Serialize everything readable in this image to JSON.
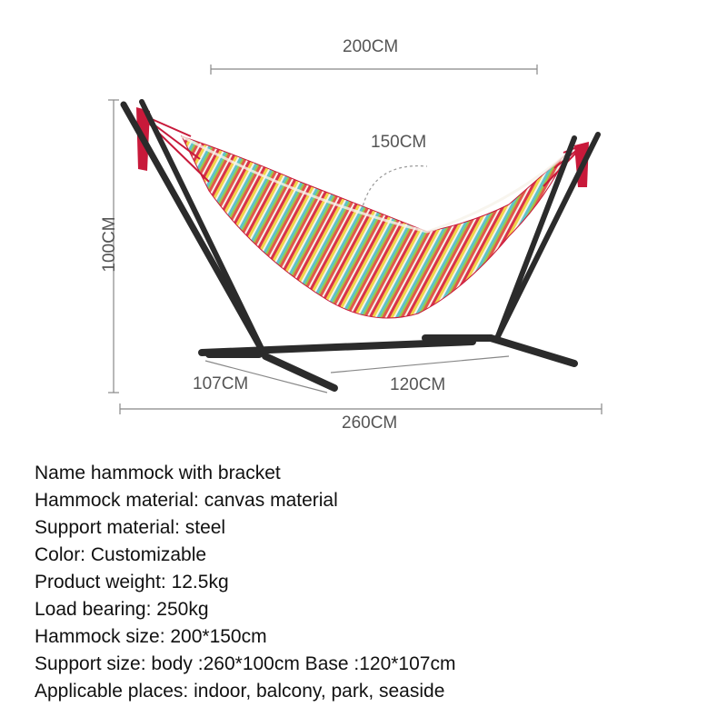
{
  "dimensions": {
    "top_width": "200CM",
    "hammock_width": "150CM",
    "height": "100CM",
    "base_depth": "107CM",
    "base_width": "120CM",
    "overall_length": "260CM"
  },
  "specs": [
    "Name hammock with bracket",
    "Hammock material: canvas material",
    "Support material: steel",
    "Color: Customizable",
    "Product weight: 12.5kg",
    "Load bearing: 250kg",
    "Hammock size: 200*150cm",
    "Support size: body :260*100cm Base :120*107cm",
    "Applicable places: indoor, balcony, park, seaside"
  ],
  "colors": {
    "frame": "#2b2b2b",
    "rope": "#c8193a",
    "stripe_red": "#d8324a",
    "stripe_yellow": "#f2d44a",
    "stripe_teal": "#5fc3c8",
    "stripe_green": "#9cc94a",
    "stripe_white": "#f6f2ea"
  }
}
